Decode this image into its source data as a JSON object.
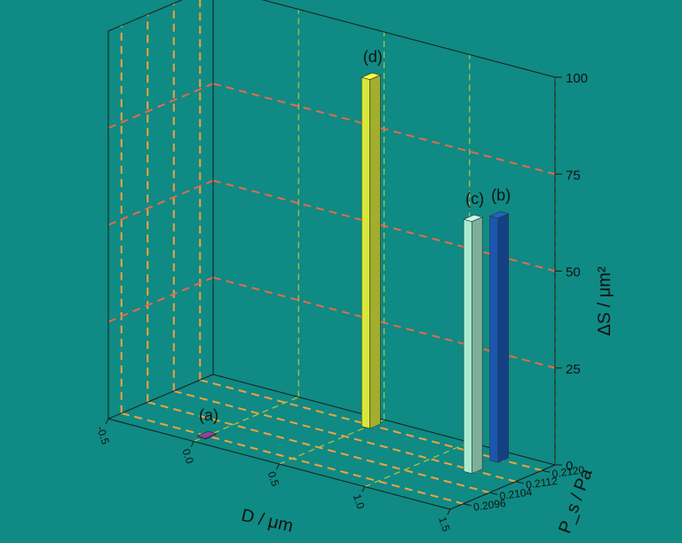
{
  "chart_data": {
    "type": "bar3d",
    "z_label": "ΔS / μm²",
    "z_ticks": [
      "0",
      "25",
      "50",
      "75",
      "100"
    ],
    "z_range": [
      0,
      100
    ],
    "x_label": "D / μm",
    "x_ticks": [
      "-0.5",
      "0.0",
      "0.5",
      "1.0",
      "1.5"
    ],
    "x_range": [
      -0.5,
      1.5
    ],
    "y_label": "P_s / Pa",
    "y_ticks": [
      "0.2096",
      "0.2104",
      "0.2112",
      "0.2120"
    ],
    "y_range": [
      0.2092,
      0.2124
    ],
    "grid": true,
    "bars": [
      {
        "label": "(a)",
        "x": 0.0,
        "y": 0.2096,
        "z": 0.3,
        "color": "#7a3d8c"
      },
      {
        "label": "(b)",
        "x": 1.25,
        "y": 0.212,
        "z": 63,
        "color": "#1b56b0"
      },
      {
        "label": "(c)",
        "x": 1.25,
        "y": 0.2112,
        "z": 65,
        "color": "#a7ebcf"
      },
      {
        "label": "(d)",
        "x": 0.5,
        "y": 0.212,
        "z": 90,
        "color": "#d8e83a"
      }
    ]
  }
}
